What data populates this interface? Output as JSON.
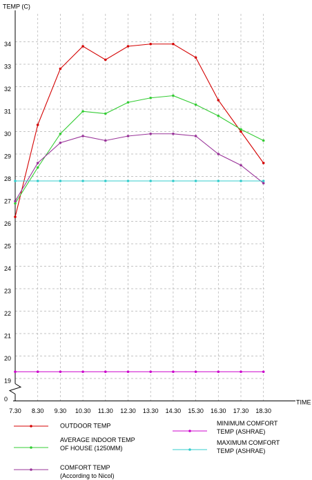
{
  "chart_data": {
    "type": "line",
    "y_label": "TEMP (C)",
    "x_label": "TIME",
    "categories": [
      "7.30",
      "8.30",
      "9.30",
      "10.30",
      "11.30",
      "12.30",
      "13.30",
      "14.30",
      "15.30",
      "16.30",
      "17.30",
      "18.30"
    ],
    "series": [
      {
        "name": "OUTDOOR TEMP",
        "color": "#d40000",
        "values": [
          26.2,
          30.3,
          32.8,
          33.8,
          33.2,
          33.8,
          33.9,
          33.9,
          33.3,
          31.4,
          30.0,
          28.6
        ]
      },
      {
        "name": "AVERAGE INDOOR TEMP\nOF HOUSE (1250MM)",
        "color": "#33cc33",
        "values": [
          26.8,
          28.4,
          29.9,
          30.9,
          30.8,
          31.3,
          31.5,
          31.6,
          31.2,
          30.7,
          30.1,
          29.6
        ]
      },
      {
        "name": "COMFORT TEMP\n(According to Nicol)",
        "color": "#993399",
        "values": [
          26.9,
          28.6,
          29.5,
          29.8,
          29.6,
          29.8,
          29.9,
          29.9,
          29.8,
          29.0,
          28.5,
          27.7
        ]
      },
      {
        "name": "MINIMUM COMFORT\nTEMP (ASHRAE)",
        "color": "#cc00cc",
        "values": [
          19.3,
          19.3,
          19.3,
          19.3,
          19.3,
          19.3,
          19.3,
          19.3,
          19.3,
          19.3,
          19.3,
          19.3
        ]
      },
      {
        "name": "MAXIMUM COMFORT\nTEMP (ASHRAE)",
        "color": "#33cccc",
        "values": [
          27.8,
          27.8,
          27.8,
          27.8,
          27.8,
          27.8,
          27.8,
          27.8,
          27.8,
          27.8,
          27.8,
          27.8
        ]
      }
    ],
    "ylim": [
      18,
      35.4
    ],
    "y_break": true,
    "yticks": [
      0,
      19,
      20,
      21,
      22,
      23,
      24,
      25,
      26,
      27,
      28,
      29,
      30,
      31,
      32,
      33,
      34
    ],
    "grid": true
  }
}
